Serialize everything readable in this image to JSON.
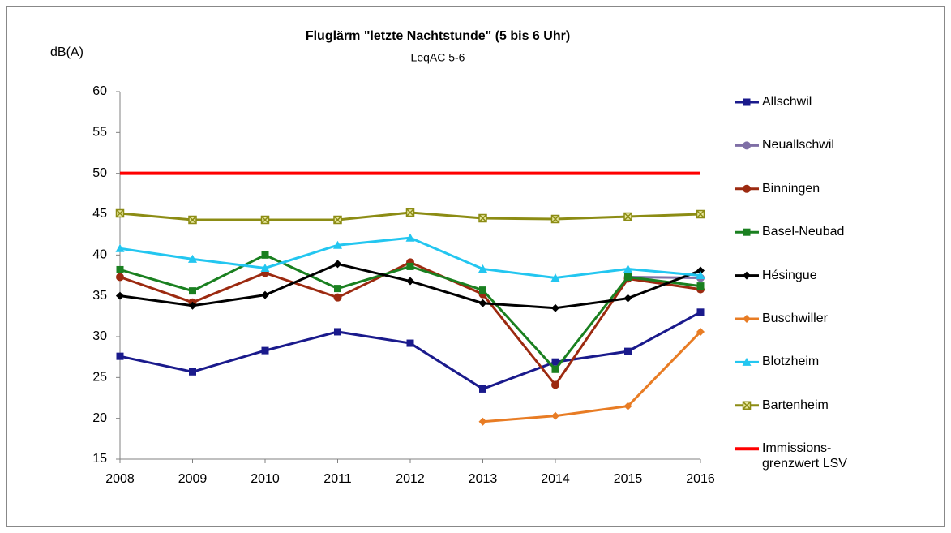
{
  "chart_data": {
    "type": "line",
    "title": "Fluglärm \"letzte Nachtstunde\" (5 bis 6 Uhr)",
    "subtitle": "LeqAC 5-6",
    "y_label": "dB(A)",
    "x": [
      2008,
      2009,
      2010,
      2011,
      2012,
      2013,
      2014,
      2015,
      2016
    ],
    "xlim": [
      2008,
      2016
    ],
    "xticks": [
      2008,
      2009,
      2010,
      2011,
      2012,
      2013,
      2014,
      2015,
      2016
    ],
    "ylim": [
      15,
      60
    ],
    "yticks": [
      15,
      20,
      25,
      30,
      35,
      40,
      45,
      50,
      55,
      60
    ],
    "grid": false,
    "legend": "right",
    "series": [
      {
        "name": "Allschwil",
        "color": "#1a1a8c",
        "marker": "square",
        "values": [
          27.6,
          25.7,
          28.3,
          30.6,
          29.2,
          23.6,
          26.9,
          28.2,
          33.0
        ]
      },
      {
        "name": "Neuallschwil",
        "color": "#7f6fa6",
        "marker": "circle",
        "values": [
          null,
          null,
          null,
          null,
          null,
          null,
          null,
          37.3,
          37.2
        ]
      },
      {
        "name": "Binningen",
        "color": "#9c2a10",
        "marker": "circle",
        "values": [
          37.3,
          34.2,
          37.8,
          34.8,
          39.1,
          35.2,
          24.1,
          37.1,
          35.8
        ]
      },
      {
        "name": "Basel-Neubad",
        "color": "#1a8020",
        "marker": "square",
        "values": [
          38.2,
          35.6,
          40.0,
          35.9,
          38.6,
          35.7,
          26.0,
          37.3,
          36.2
        ]
      },
      {
        "name": "Hésingue",
        "color": "#000000",
        "marker": "diamond",
        "values": [
          35.0,
          33.8,
          35.1,
          38.9,
          36.8,
          34.1,
          33.5,
          34.7,
          38.1
        ]
      },
      {
        "name": "Buschwiller",
        "color": "#e87c24",
        "marker": "diamond",
        "values": [
          null,
          null,
          null,
          null,
          null,
          19.6,
          20.3,
          21.5,
          30.6
        ]
      },
      {
        "name": "Blotzheim",
        "color": "#23c6f0",
        "marker": "triangle",
        "values": [
          40.8,
          39.5,
          38.4,
          41.2,
          42.1,
          38.3,
          37.2,
          38.3,
          37.5
        ]
      },
      {
        "name": "Bartenheim",
        "color": "#8c8c14",
        "marker": "star",
        "values": [
          45.1,
          44.3,
          44.3,
          44.3,
          45.2,
          44.5,
          44.4,
          44.7,
          45.0
        ]
      },
      {
        "name": "Immissions-\ngrenzwert LSV",
        "color": "#ff0000",
        "marker": "none",
        "values": [
          50,
          50,
          50,
          50,
          50,
          50,
          50,
          50,
          50
        ]
      }
    ]
  }
}
